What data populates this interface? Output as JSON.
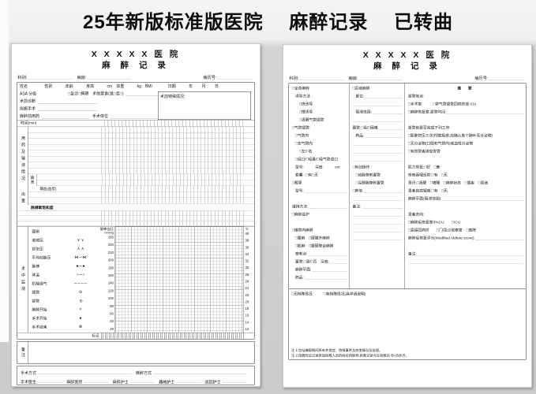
{
  "banner": {
    "title": "25年新版标准版医院　 麻醉记录　 已转曲"
  },
  "left": {
    "hospital": "X X X X X 医 院",
    "title": "麻 醉 记 录",
    "meta": {
      "dept": "科别:",
      "ward": "病房:",
      "rec": "病历号:"
    },
    "patient_row": "姓名　　　　 性别　　　 年龄　　　 身高　　　 cm　体重　　　 kg　BMI　　　　日期　　　 年　　 月　　 日",
    "asa_row": "ASA 分级　　　　　　　　□急诊□择期　术前禁食(是□否□)",
    "preop_label": "术前特殊情况:",
    "diag_label": "术前诊断",
    "op_label": "拟施手术",
    "premed_label": "麻醉前用药",
    "position_label": "手术体位",
    "time_label": "时间(min)",
    "drug_section": "用药及输液情况",
    "infuse_label": "输液",
    "transfuse_label": "输血(血浆)",
    "output_label": "出量",
    "spo2_label": "脉搏氧饱和度",
    "monitor_label": "术中监测",
    "legend": {
      "header": "图例",
      "items": [
        {
          "label": "收缩压",
          "sym": "∨ ∨"
        },
        {
          "label": "舒张压",
          "sym": "∧ ∧"
        },
        {
          "label": "平均动脉压",
          "sym": "⋈—⋈"
        },
        {
          "label": "脉搏",
          "sym": "●—●"
        },
        {
          "label": "体温",
          "sym": "○—○"
        },
        {
          "label": "机械通气",
          "sym": "∼∼∼∼"
        },
        {
          "label": "插管",
          "sym": "⊖"
        },
        {
          "label": "拔管",
          "sym": "⊖",
          "c": "rot"
        },
        {
          "label": "麻醉开始",
          "sym": "×"
        },
        {
          "label": "手术开始",
          "sym": "●"
        },
        {
          "label": "手术结束",
          "sym": "⊗"
        }
      ]
    },
    "bp_header": [
      "脉搏/血压",
      "mmHg"
    ],
    "bp_scale": [
      "260",
      "240",
      "220",
      "200",
      "180",
      "160",
      "140",
      "120",
      "100",
      "80",
      "60",
      "40",
      "20"
    ],
    "temp_header": "℃",
    "temp_scale": [
      "40",
      "38",
      "36",
      "34",
      "32",
      "30",
      "28",
      "26",
      "24",
      "22",
      "20",
      "18",
      "16",
      "14",
      "12"
    ],
    "mark_label": "标记",
    "remark_label": "备注",
    "footer1": [
      "手术方式",
      "麻醉方式"
    ],
    "footer2": [
      "手术医生",
      "麻醉医师",
      "麻醉护士",
      "器械护士",
      "巡回护士"
    ]
  },
  "right": {
    "hospital": "X X X X X 医 院",
    "title": "麻 醉 记 录",
    "meta": {
      "dept": "科别:",
      "ward": "病房:",
      "rec": "病历号:"
    },
    "col1": [
      {
        "t": "□全身麻醉"
      },
      {
        "t": "诱导方法 :",
        "c": "i1"
      },
      {
        "t": "□快诱导",
        "c": "i2"
      },
      {
        "t": "□慢诱导",
        "c": "i2"
      },
      {
        "t": "□清醒气管插管",
        "c": "i2"
      },
      {
        "t": "□气管插管:"
      },
      {
        "t": "□气管内",
        "c": "i1"
      },
      {
        "t": "□支气管内",
        "c": "i1"
      },
      {
        "t": "□左/□右",
        "c": "i2"
      },
      {
        "t": "□经口/□经鼻/□经气管造口",
        "c": "i1"
      },
      {
        "t": "型号:　　　深度:　　　cm",
        "c": "i1"
      },
      {
        "t": "套囊 : □有□无",
        "c": "i1"
      },
      {
        "t": "□喉罩"
      },
      {
        "t": "型号:",
        "c": "i1 u"
      },
      {
        "t": "",
        "c": "gap"
      },
      {
        "t": "维持方法:",
        "c": "u"
      },
      {
        "t": "□麻醉监护"
      },
      {
        "t": "",
        "c": "gap"
      },
      {
        "t": "□椎管内麻醉"
      },
      {
        "t": "□腰麻　□硬膜外麻醉",
        "c": "i1"
      },
      {
        "t": "□骶麻　□腰硬联合麻醉",
        "c": "i1"
      },
      {
        "t": "穿刺点:",
        "c": "i1 u"
      },
      {
        "t": "置管:□是/□否　深度:",
        "c": "i1 u"
      },
      {
        "t": "麻醉平面:",
        "c": "i1 u"
      },
      {
        "t": "药品:",
        "c": "i1 u"
      }
    ],
    "col2": [
      {
        "t": "□区域麻醉"
      },
      {
        "t": "部位:",
        "c": "i1 u"
      },
      {
        "t": "",
        "c": "dot"
      },
      {
        "t": "阻滞范围:",
        "c": "i1 u"
      },
      {
        "t": "",
        "c": "dot"
      },
      {
        "t": "置管:□易/□困难",
        "c": "u"
      },
      {
        "t": "药品:",
        "c": "i1 u"
      },
      {
        "t": "",
        "c": "dot"
      },
      {
        "t": "",
        "c": "dot"
      },
      {
        "t": "",
        "c": "dot"
      },
      {
        "t": "□有创操作 :"
      },
      {
        "t": "□动脉穿刺置管",
        "c": "i1"
      },
      {
        "t": "□深静脉穿刺置管",
        "c": "i1"
      },
      {
        "t": "□其他:",
        "c": "u"
      },
      {
        "t": "",
        "c": "dot"
      },
      {
        "t": "备注:",
        "c": "u"
      },
      {
        "t": "",
        "c": "dot"
      },
      {
        "t": "",
        "c": "dot"
      },
      {
        "t": "",
        "c": "dot"
      },
      {
        "t": "",
        "c": "dot"
      }
    ],
    "col3": [
      {
        "t": "离　室",
        "c": "hdr"
      },
      {
        "t": "拔管地点:"
      },
      {
        "t": "□手术室　　　□带气管插管回病房或 ICU"
      },
      {
        "t": "□麻醉恢复室,拔管时间",
        "c": "u"
      },
      {
        "t": "",
        "c": "gap"
      },
      {
        "t": "拔管前是否完成下列工作:"
      },
      {
        "t": "□膨肺挤压三次(彻底吸痰,应确认各个肺叶无分泌物)"
      },
      {
        "t": "□无分泌物(口腔和气管内)或血性分泌物"
      },
      {
        "t": "□有胃管者排空胃管"
      },
      {
        "t": "",
        "c": "gap"
      },
      {
        "t": "肌力恢复:□好　□差"
      },
      {
        "t": "咳嗽吞咽反射:□有　□无"
      },
      {
        "t": "意识:□清醒　□嗜睡　□麻醉状态　□谵妄　□昏迷"
      },
      {
        "t": "患者自控镇痛:□有　□无"
      },
      {
        "t": "麻醉平面(阻滞范围):",
        "c": "u"
      },
      {
        "t": "",
        "c": "gap"
      },
      {
        "t": "患者去向:"
      },
      {
        "t": "□麻醉后恢复室/PACU　　□ICU"
      },
      {
        "t": "□直接回病房　　□门/急诊观察室　□离院"
      },
      {
        "t": "麻醉后恢复评分(Modified Aldrete score):",
        "c": "u"
      },
      {
        "t": "",
        "c": "gap"
      },
      {
        "t": "备注:",
        "c": "u"
      },
      {
        "t": "",
        "c": "dot"
      }
    ],
    "special": "□无特殊情况　　　□有特殊情况(具体请说明)",
    "notes": [
      "注 1:包括麻醉期间所有并发症、特殊事件及突发情况及处理。",
      "注 2:抢救时应记录参加抢救人员的姓名和职称,抢救记录可在抢救后 6h 内补齐。"
    ]
  }
}
